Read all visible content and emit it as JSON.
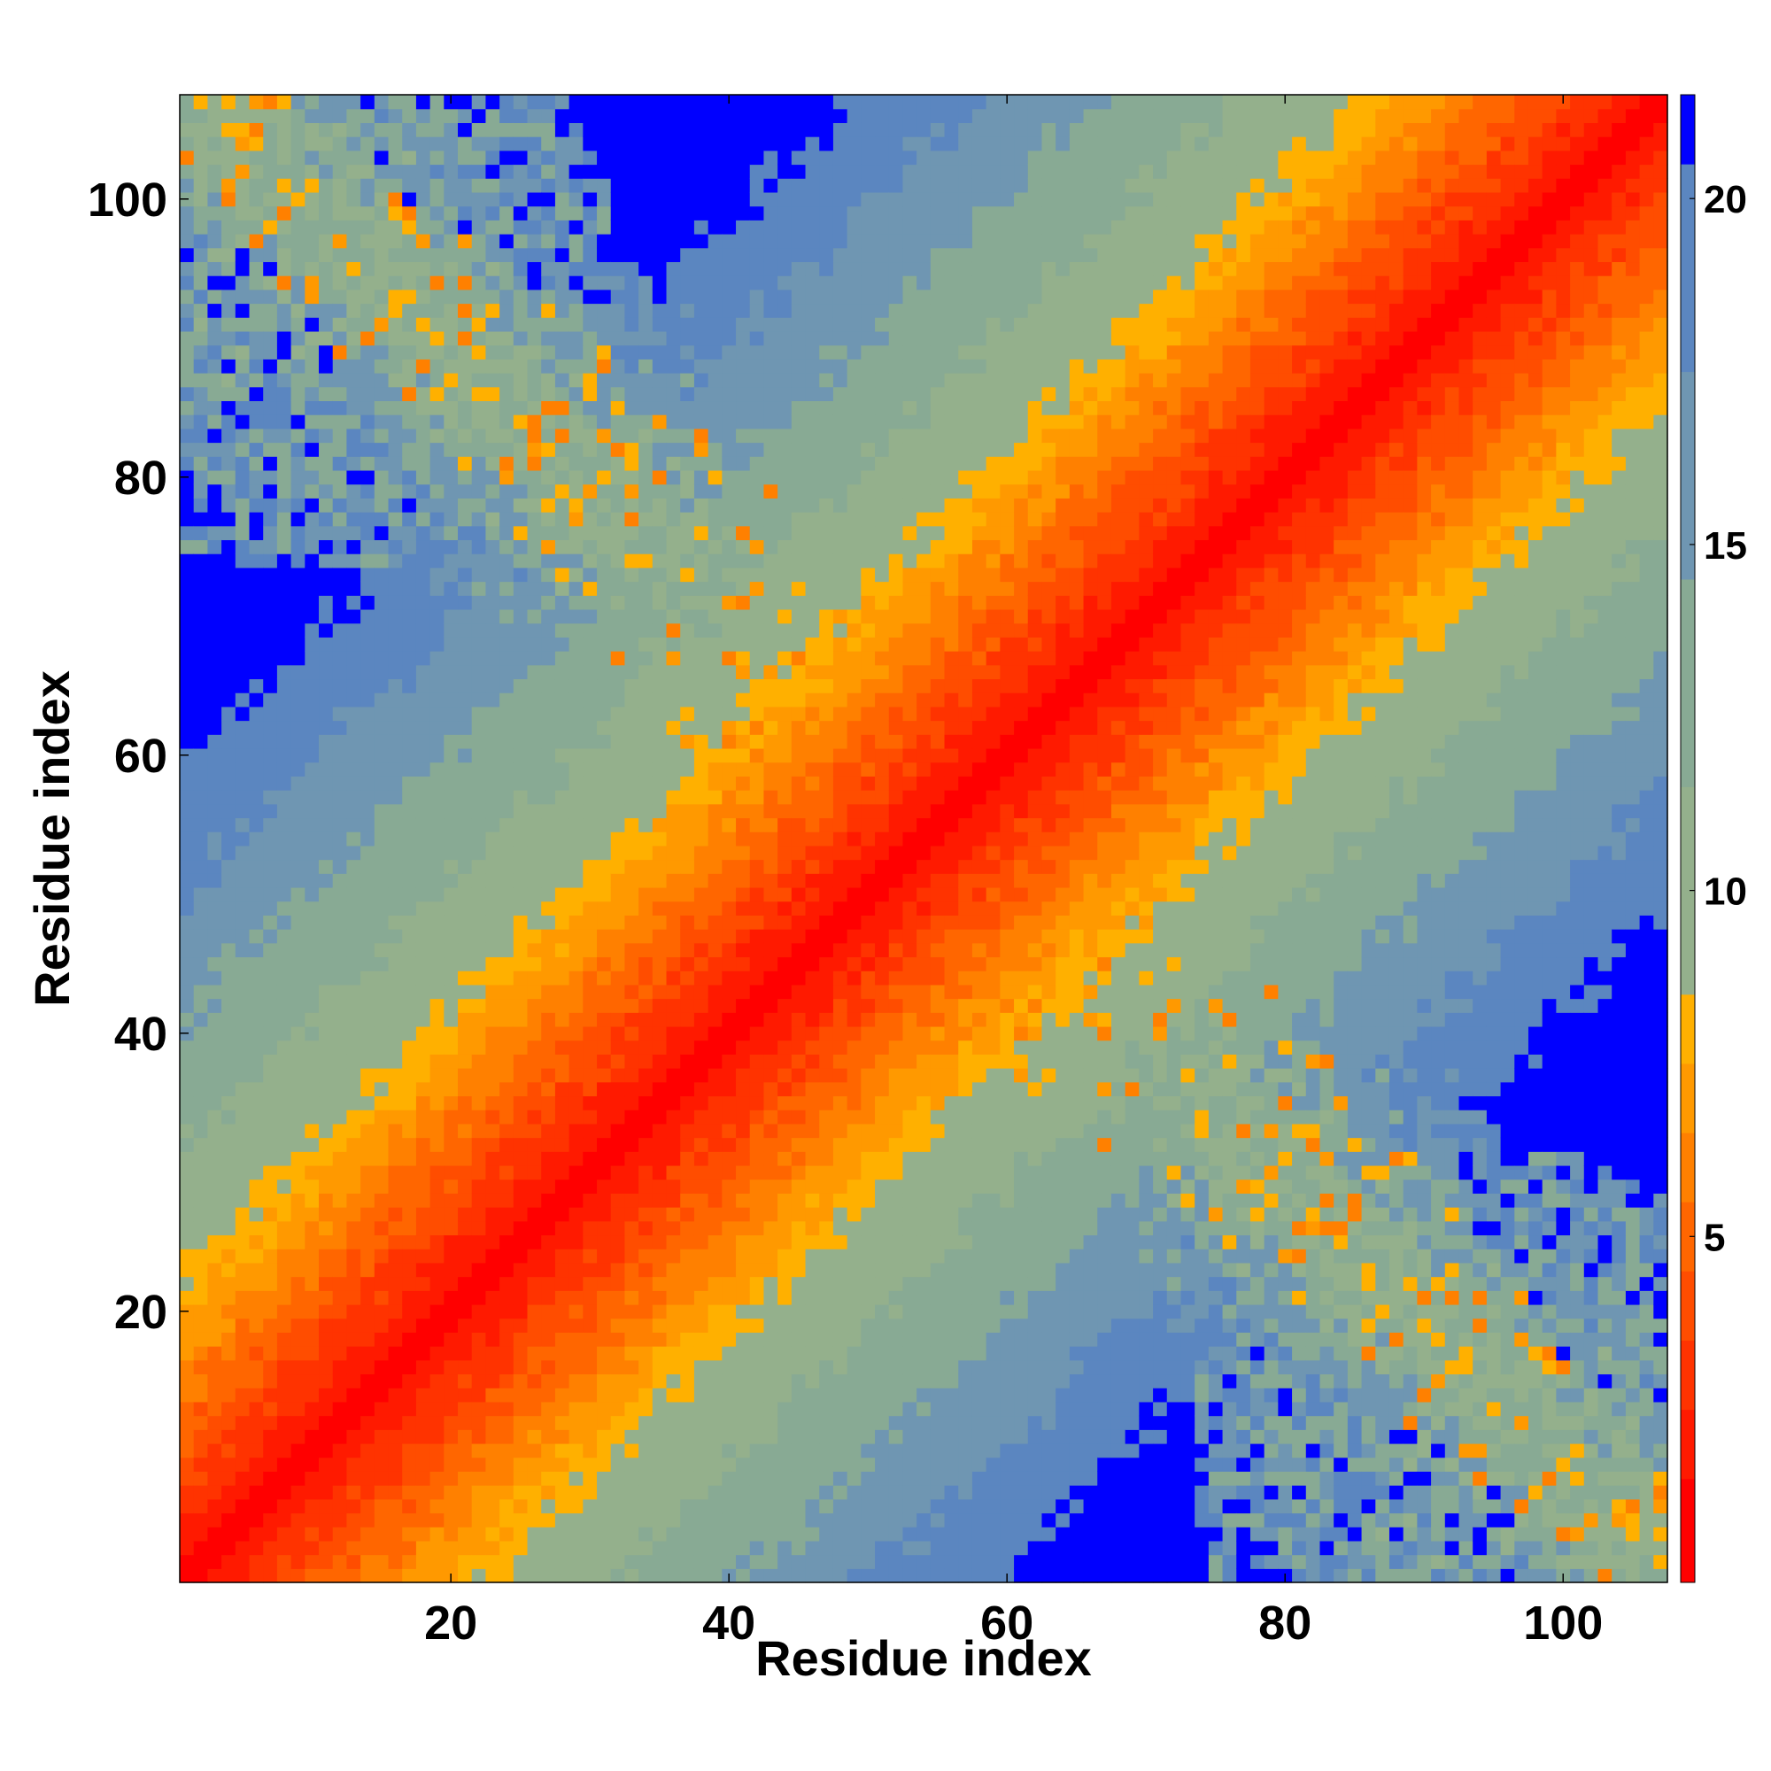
{
  "chart_data": {
    "type": "heatmap",
    "title": "",
    "xlabel": "Residue index",
    "ylabel": "Residue index",
    "n_residues": 107,
    "xlim": [
      0.5,
      107.5
    ],
    "ylim": [
      0.5,
      107.5
    ],
    "x_ticks": [
      20,
      40,
      60,
      80,
      100
    ],
    "y_ticks": [
      20,
      40,
      60,
      80,
      100
    ],
    "grid": false,
    "colorbar": {
      "position": "right",
      "min": 0,
      "max": 21.5,
      "ticks": [
        5,
        10,
        15,
        20
      ],
      "levels": [
        {
          "from": 0.0,
          "to": 1.5,
          "color": "#ff0000"
        },
        {
          "from": 1.5,
          "to": 2.5,
          "color": "#ff1a00"
        },
        {
          "from": 2.5,
          "to": 3.5,
          "color": "#ff3300"
        },
        {
          "from": 3.5,
          "to": 4.5,
          "color": "#ff4d00"
        },
        {
          "from": 4.5,
          "to": 5.5,
          "color": "#ff6600"
        },
        {
          "from": 5.5,
          "to": 6.5,
          "color": "#ff8000"
        },
        {
          "from": 6.5,
          "to": 7.5,
          "color": "#ff9900"
        },
        {
          "from": 7.5,
          "to": 8.5,
          "color": "#ffb000"
        },
        {
          "from": 8.5,
          "to": 11.5,
          "color": "#94b08c"
        },
        {
          "from": 11.5,
          "to": 14.5,
          "color": "#88aa94"
        },
        {
          "from": 14.5,
          "to": 17.5,
          "color": "#6f96b2"
        },
        {
          "from": 17.5,
          "to": 20.5,
          "color": "#5b86c0"
        },
        {
          "from": 20.5,
          "to": 21.5,
          "color": "#0000ff"
        }
      ]
    },
    "description_of_values": {
      "diagonal_band": "distance ~ 1.5 + 0.38*|i-j| near the diagonal (i≈j)",
      "anti_diagonal_band": "distance ~ 8-18 along i+j≈109, with scattered low (orange) contacts",
      "background": "values ≥ 21 (blue) far from both bands"
    },
    "seed": 7
  }
}
